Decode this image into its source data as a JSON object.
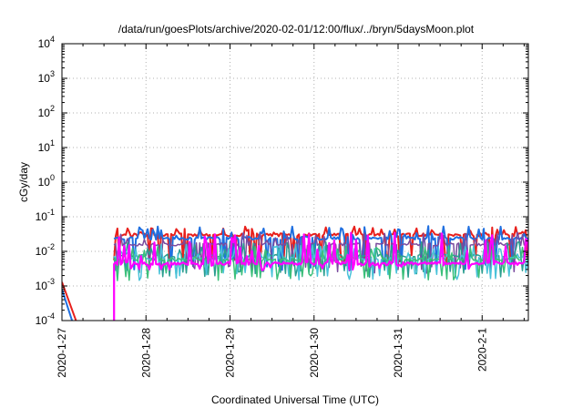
{
  "chart_data": {
    "type": "line",
    "title": "/data/run/goesPlots/archive/2020-02-01/12:00/flux/../bryn/5daysMoon.plot",
    "xlabel": "Coordinated Universal Time (UTC)",
    "ylabel": "cGy/day",
    "x_ticks": [
      "2020-1-27",
      "2020-1-28",
      "2020-1-29",
      "2020-1-30",
      "2020-1-31",
      "2020-2-1"
    ],
    "xlim_days": [
      0,
      5.55
    ],
    "ylim": [
      0.0001,
      10000
    ],
    "y_scale": "log",
    "y_ticks": [
      {
        "value": 0.0001,
        "base": "10",
        "exp": "-4"
      },
      {
        "value": 0.001,
        "base": "10",
        "exp": "-3"
      },
      {
        "value": 0.01,
        "base": "10",
        "exp": "-2"
      },
      {
        "value": 0.1,
        "base": "10",
        "exp": "-1"
      },
      {
        "value": 1,
        "base": "10",
        "exp": "0"
      },
      {
        "value": 10,
        "base": "10",
        "exp": "1"
      },
      {
        "value": 100,
        "base": "10",
        "exp": "2"
      },
      {
        "value": 1000,
        "base": "10",
        "exp": "3"
      },
      {
        "value": 10000,
        "base": "10",
        "exp": "4"
      }
    ],
    "grid": true,
    "data_start_day": 0.62,
    "series": [
      {
        "color": "#e8201c",
        "lead_in": [
          [
            0,
            0.0013
          ],
          [
            0.2,
            6e-05
          ]
        ],
        "base": 0.03,
        "spike": 0.022,
        "dip": 0.006,
        "noise": 0.0,
        "seed": 11,
        "width": 2
      },
      {
        "color": "#1f6fe0",
        "lead_in": [
          [
            0,
            0.0008
          ],
          [
            0.15,
            6e-05
          ]
        ],
        "base": 0.024,
        "spike": 0.03,
        "dip": 0.004,
        "noise": 0.0,
        "seed": 23,
        "width": 2
      },
      {
        "color": "#7a4a9e",
        "base": 0.016,
        "spike": 0.02,
        "dip": 0.003,
        "noise": 0.0,
        "seed": 37,
        "width": 1.5
      },
      {
        "color": "#2a9d8f",
        "base": 0.0075,
        "spike": 0.012,
        "dip": 0.0025,
        "noise": 0.0,
        "seed": 41,
        "width": 1.5
      },
      {
        "color": "#49c2d9",
        "base": 0.0062,
        "spike": 0.01,
        "dip": 0.002,
        "noise": 0.0,
        "seed": 53,
        "width": 1.5
      },
      {
        "color": "#3bbf7a",
        "base": 0.0058,
        "spike": 0.009,
        "dip": 0.002,
        "noise": 0.0,
        "seed": 67,
        "width": 1.5
      },
      {
        "color": "#ff00ff",
        "base": 0.0045,
        "spike": 0.03,
        "dip": 0.004,
        "noise": 0.0,
        "seed": 79,
        "width": 2.2
      }
    ]
  }
}
